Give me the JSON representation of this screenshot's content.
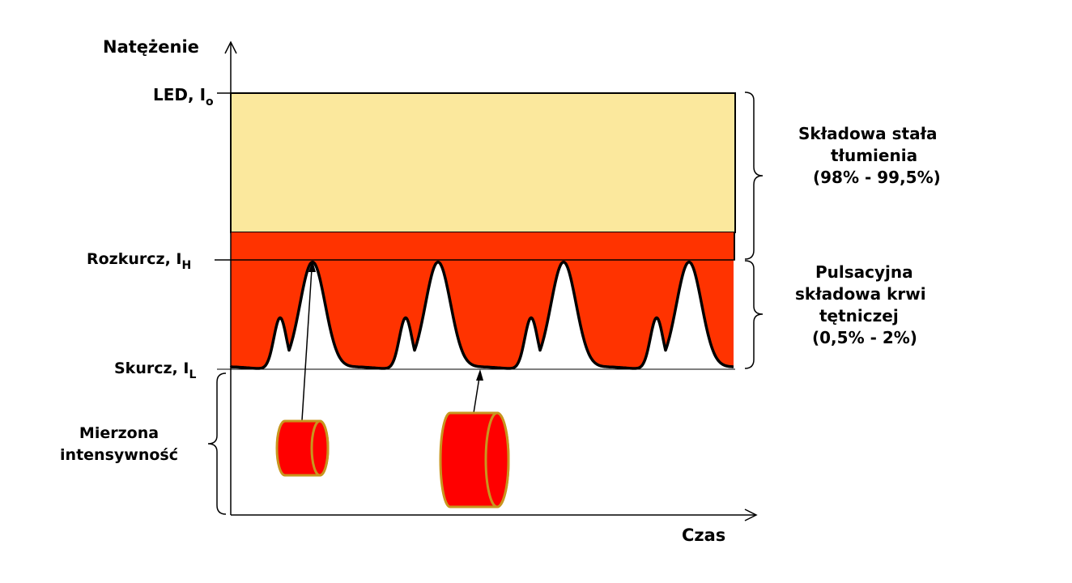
{
  "axis": {
    "y_label": "Natężenie",
    "x_label": "Czas"
  },
  "levels": {
    "led": {
      "name": "LED, I",
      "sub": "o"
    },
    "rozkurcz": {
      "name": "Rozkurcz,  I",
      "sub": "H"
    },
    "skurcz": {
      "name": "Skurcz,  I",
      "sub": "L"
    }
  },
  "right_labels": {
    "dc_line1": "Składowa stała",
    "dc_line2": "tłumienia",
    "dc_line3": "(98% - 99,5%)",
    "ac_line1": "Pulsacyjna",
    "ac_line2": "składowa krwi",
    "ac_line3": "tętniczej",
    "ac_line4": "(0,5% - 2%)"
  },
  "left_label": {
    "line1": "Mierzona",
    "line2": "intensywność"
  },
  "colors": {
    "dc_band": "#fbe89d",
    "pulse": "#ff3300",
    "cylinder": "#ff0000",
    "cylinder_edge": "#c8961e"
  }
}
